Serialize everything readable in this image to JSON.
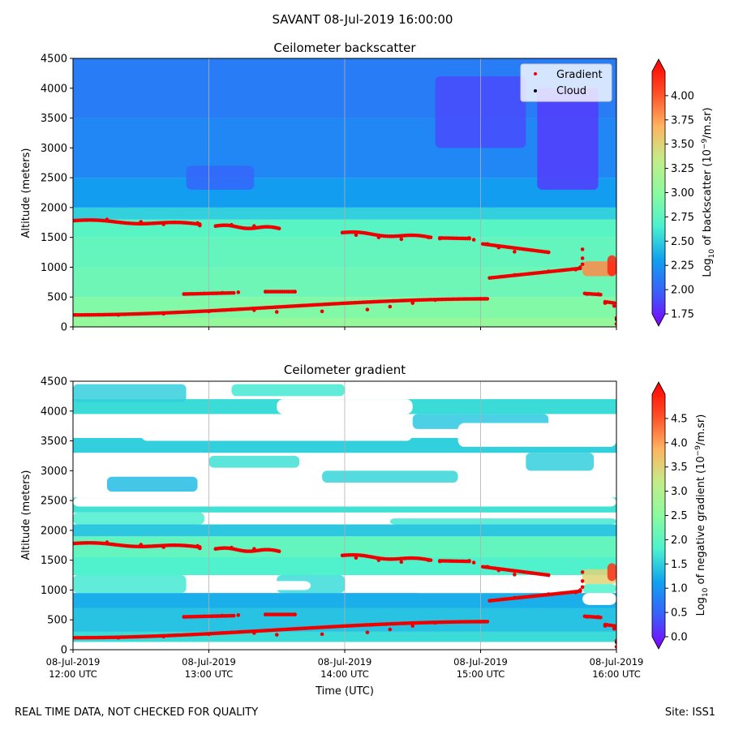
{
  "figure": {
    "title": "SAVANT 08-Jul-2019 16:00:00",
    "footer_left": "REAL TIME DATA, NOT CHECKED FOR QUALITY",
    "footer_right": "Site: ISS1"
  },
  "colors": {
    "scale_stops": [
      "#8000ff",
      "#3a5efa",
      "#10a2f0",
      "#4cf2ce",
      "#8cfa9e",
      "#c4ec8a",
      "#ffb360",
      "#ff4d26",
      "#ff0000"
    ],
    "gradient_marker": "#ee0000",
    "cloud_marker": "#000000",
    "grid": "#b0b0b0"
  },
  "chart_data": [
    {
      "type": "heatmap",
      "title": "Ceilometer backscatter",
      "ylabel": "Altitude (meters)",
      "xlabel": "",
      "ylim": [
        0,
        4500
      ],
      "xlim": [
        0,
        240
      ],
      "x_units": "minutes since 08-Jul-2019 12:00 UTC",
      "yticks": [
        0,
        500,
        1000,
        1500,
        2000,
        2500,
        3000,
        3500,
        4000,
        4500
      ],
      "xtick_values": [
        0,
        60,
        120,
        180,
        240
      ],
      "grid": "vertical",
      "legend": {
        "placement": "top-right",
        "entries": [
          "Gradient",
          "Cloud"
        ]
      },
      "colorbar": {
        "label": "Log$_{10}$ of backscatter (10$^{-9}$/m.sr)",
        "label_parts": {
          "pre": "Log",
          "sub": "10",
          "mid": " of backscatter (10",
          "sup": "−9",
          "post": "/m.sr)"
        },
        "range": [
          1.75,
          4.25
        ],
        "ticks": [
          "1.75",
          "2.00",
          "2.25",
          "2.50",
          "2.75",
          "3.00",
          "3.25",
          "3.50",
          "3.75",
          "4.00"
        ],
        "tick_values": [
          1.75,
          2.0,
          2.25,
          2.5,
          2.75,
          3.0,
          3.25,
          3.5,
          3.75,
          4.0
        ],
        "extend": "both"
      },
      "layers": [
        {
          "from": 0,
          "to": 150,
          "value": 3.05
        },
        {
          "from": 150,
          "to": 500,
          "value": 2.95
        },
        {
          "from": 500,
          "to": 1000,
          "value": 2.85
        },
        {
          "from": 1000,
          "to": 1500,
          "value": 2.8
        },
        {
          "from": 1500,
          "to": 1800,
          "value": 2.75
        },
        {
          "from": 1800,
          "to": 2000,
          "value": 2.55
        },
        {
          "from": 2000,
          "to": 2500,
          "value": 2.35
        },
        {
          "from": 2500,
          "to": 3500,
          "value": 2.25
        },
        {
          "from": 3500,
          "to": 4500,
          "value": 2.2
        }
      ],
      "patches": [
        {
          "t0": 160,
          "t1": 200,
          "y0": 3000,
          "y1": 4200,
          "value": 2.0
        },
        {
          "t0": 205,
          "t1": 232,
          "y0": 2300,
          "y1": 4000,
          "value": 1.95
        },
        {
          "t0": 50,
          "t1": 80,
          "y0": 2300,
          "y1": 2700,
          "value": 2.1
        },
        {
          "t0": 225,
          "t1": 240,
          "y0": 850,
          "y1": 1100,
          "value": 3.75
        },
        {
          "t0": 236,
          "t1": 240,
          "y0": 850,
          "y1": 1200,
          "value": 4.1
        }
      ],
      "gradient_points": [
        [
          0,
          200
        ],
        [
          20,
          200
        ],
        [
          40,
          220
        ],
        [
          60,
          260
        ],
        [
          70,
          290
        ],
        [
          80,
          280
        ],
        [
          90,
          250
        ],
        [
          110,
          260
        ],
        [
          130,
          290
        ],
        [
          140,
          340
        ],
        [
          150,
          400
        ],
        [
          160,
          450
        ],
        [
          180,
          470
        ],
        [
          182,
          470
        ],
        [
          184,
          820
        ],
        [
          195,
          870
        ],
        [
          210,
          930
        ],
        [
          222,
          960
        ],
        [
          224,
          1000
        ],
        [
          225,
          1050
        ],
        [
          225,
          1150
        ],
        [
          225,
          1300
        ],
        [
          227,
          550
        ],
        [
          232,
          550
        ],
        [
          235,
          400
        ],
        [
          239,
          350
        ],
        [
          240,
          150
        ],
        [
          240,
          50
        ],
        [
          0,
          1780
        ],
        [
          15,
          1800
        ],
        [
          30,
          1760
        ],
        [
          40,
          1720
        ],
        [
          55,
          1740
        ],
        [
          56,
          1700
        ],
        [
          63,
          1690
        ],
        [
          70,
          1710
        ],
        [
          80,
          1690
        ],
        [
          91,
          1650
        ],
        [
          119,
          1580
        ],
        [
          125,
          1540
        ],
        [
          135,
          1500
        ],
        [
          145,
          1470
        ],
        [
          157,
          1500
        ],
        [
          162,
          1480
        ],
        [
          175,
          1490
        ],
        [
          177,
          1460
        ],
        [
          183,
          1390
        ],
        [
          188,
          1330
        ],
        [
          195,
          1260
        ],
        [
          210,
          1250
        ],
        [
          49,
          550
        ],
        [
          58,
          560
        ],
        [
          66,
          570
        ],
        [
          73,
          580
        ],
        [
          85,
          590
        ],
        [
          98,
          590
        ]
      ],
      "gradient_segments": [
        {
          "t0": 0,
          "t1": 183,
          "y0": 200,
          "y1": 470,
          "shape": "s"
        },
        {
          "t0": 184,
          "t1": 224,
          "y0": 820,
          "y1": 980,
          "shape": "lin"
        },
        {
          "t0": 0,
          "t1": 56,
          "y0": 1780,
          "y1": 1720,
          "shape": "wave"
        },
        {
          "t0": 63,
          "t1": 91,
          "y0": 1690,
          "y1": 1650,
          "shape": "wave"
        },
        {
          "t0": 119,
          "t1": 158,
          "y0": 1580,
          "y1": 1500,
          "shape": "wave"
        },
        {
          "t0": 162,
          "t1": 175,
          "y0": 1490,
          "y1": 1480,
          "shape": "lin"
        },
        {
          "t0": 181,
          "t1": 210,
          "y0": 1390,
          "y1": 1250,
          "shape": "lin"
        },
        {
          "t0": 49,
          "t1": 71,
          "y0": 550,
          "y1": 570,
          "shape": "lin"
        },
        {
          "t0": 85,
          "t1": 98,
          "y0": 590,
          "y1": 590,
          "shape": "lin"
        },
        {
          "t0": 226,
          "t1": 233,
          "y0": 560,
          "y1": 540,
          "shape": "lin"
        },
        {
          "t0": 235,
          "t1": 239,
          "y0": 420,
          "y1": 400,
          "shape": "lin"
        }
      ],
      "cloud_points": [
        [
          240,
          120
        ]
      ]
    },
    {
      "type": "heatmap",
      "title": "Ceilometer gradient",
      "ylabel": "Altitude (meters)",
      "xlabel": "Time (UTC)",
      "ylim": [
        0,
        4500
      ],
      "xlim": [
        0,
        240
      ],
      "x_units": "minutes since 08-Jul-2019 12:00 UTC",
      "yticks": [
        0,
        500,
        1000,
        1500,
        2000,
        2500,
        3000,
        3500,
        4000,
        4500
      ],
      "xtick_values": [
        0,
        60,
        120,
        180,
        240
      ],
      "xticks": [
        [
          "08-Jul-2019",
          "12:00 UTC"
        ],
        [
          "08-Jul-2019",
          "13:00 UTC"
        ],
        [
          "08-Jul-2019",
          "14:00 UTC"
        ],
        [
          "08-Jul-2019",
          "15:00 UTC"
        ],
        [
          "08-Jul-2019",
          "16:00 UTC"
        ]
      ],
      "grid": "vertical",
      "colorbar": {
        "label": "Log$_{10}$ of negative gradient (10$^{-9}$/m.sr)",
        "label_parts": {
          "pre": "Log",
          "sub": "10",
          "mid": " of negative gradient (10",
          "sup": "−9",
          "post": "/m.sr)"
        },
        "range": [
          0.0,
          5.0
        ],
        "ticks": [
          "0.0",
          "0.5",
          "1.0",
          "1.5",
          "2.0",
          "2.5",
          "3.0",
          "3.5",
          "4.0",
          "4.5"
        ],
        "tick_values": [
          0.0,
          0.5,
          1.0,
          1.5,
          2.0,
          2.5,
          3.0,
          3.5,
          4.0,
          4.5
        ],
        "extend": "both"
      },
      "layers": [
        {
          "from": 130,
          "to": 300,
          "value": 1.7
        },
        {
          "from": 300,
          "to": 700,
          "value": 1.5
        },
        {
          "from": 700,
          "to": 950,
          "value": 1.35
        },
        {
          "from": 1250,
          "to": 1550,
          "value": 1.9
        },
        {
          "from": 1550,
          "to": 1900,
          "value": 2.1
        },
        {
          "from": 1900,
          "to": 2100,
          "value": 1.55
        },
        {
          "from": 2300,
          "to": 2550,
          "value": 1.75
        },
        {
          "from": 3300,
          "to": 3550,
          "value": 1.6
        },
        {
          "from": 3950,
          "to": 4200,
          "value": 1.7
        }
      ],
      "patches": [
        {
          "t0": 0,
          "t1": 58,
          "y0": 2100,
          "y1": 2300,
          "value": 1.85
        },
        {
          "t0": 140,
          "t1": 240,
          "y0": 2100,
          "y1": 2200,
          "value": 1.8
        },
        {
          "t0": 15,
          "t1": 55,
          "y0": 2650,
          "y1": 2900,
          "value": 1.45
        },
        {
          "t0": 110,
          "t1": 170,
          "y0": 2800,
          "y1": 3000,
          "value": 1.65
        },
        {
          "t0": 200,
          "t1": 230,
          "y0": 3000,
          "y1": 3300,
          "value": 1.6
        },
        {
          "t0": 60,
          "t1": 100,
          "y0": 3050,
          "y1": 3250,
          "value": 1.75
        },
        {
          "t0": 0,
          "t1": 50,
          "y0": 4150,
          "y1": 4450,
          "value": 1.6
        },
        {
          "t0": 70,
          "t1": 120,
          "y0": 4250,
          "y1": 4450,
          "value": 1.8
        },
        {
          "t0": 150,
          "t1": 210,
          "y0": 3700,
          "y1": 3950,
          "value": 1.55
        },
        {
          "t0": 0,
          "t1": 50,
          "y0": 950,
          "y1": 1250,
          "value": 1.8
        },
        {
          "t0": 90,
          "t1": 120,
          "y0": 950,
          "y1": 1250,
          "value": 1.7
        },
        {
          "t0": 225,
          "t1": 240,
          "y0": 1100,
          "y1": 1350,
          "value": 3.4
        },
        {
          "t0": 236,
          "t1": 240,
          "y0": 1150,
          "y1": 1450,
          "value": 4.6
        },
        {
          "t0": 225,
          "t1": 240,
          "y0": 950,
          "y1": 1100,
          "value": 1.9
        }
      ],
      "gaps": [
        {
          "t0": 0,
          "t1": 240,
          "y0": 2400,
          "y1": 2550
        },
        {
          "t0": 30,
          "t1": 150,
          "y0": 3500,
          "y1": 3850
        },
        {
          "t0": 170,
          "t1": 240,
          "y0": 3400,
          "y1": 3800
        },
        {
          "t0": 0,
          "t1": 40,
          "y0": 3550,
          "y1": 3950
        },
        {
          "t0": 90,
          "t1": 150,
          "y0": 3950,
          "y1": 4200
        },
        {
          "t0": 0,
          "t1": 60,
          "y0": 3000,
          "y1": 3300
        },
        {
          "t0": 100,
          "t1": 240,
          "y0": 2600,
          "y1": 2780
        },
        {
          "t0": 200,
          "t1": 240,
          "y0": 4250,
          "y1": 4450
        },
        {
          "t0": 80,
          "t1": 105,
          "y0": 1000,
          "y1": 1150
        },
        {
          "t0": 150,
          "t1": 205,
          "y0": 950,
          "y1": 1100
        },
        {
          "t0": 225,
          "t1": 240,
          "y0": 750,
          "y1": 950
        }
      ],
      "gradient_points": [
        [
          0,
          200
        ],
        [
          20,
          200
        ],
        [
          40,
          220
        ],
        [
          60,
          260
        ],
        [
          70,
          290
        ],
        [
          80,
          280
        ],
        [
          90,
          250
        ],
        [
          110,
          260
        ],
        [
          130,
          290
        ],
        [
          140,
          340
        ],
        [
          150,
          400
        ],
        [
          160,
          450
        ],
        [
          180,
          470
        ],
        [
          182,
          470
        ],
        [
          184,
          820
        ],
        [
          195,
          870
        ],
        [
          210,
          930
        ],
        [
          222,
          960
        ],
        [
          224,
          1000
        ],
        [
          225,
          1050
        ],
        [
          225,
          1150
        ],
        [
          225,
          1300
        ],
        [
          227,
          550
        ],
        [
          232,
          550
        ],
        [
          235,
          400
        ],
        [
          239,
          350
        ],
        [
          240,
          150
        ],
        [
          240,
          50
        ],
        [
          0,
          1780
        ],
        [
          15,
          1800
        ],
        [
          30,
          1760
        ],
        [
          40,
          1720
        ],
        [
          55,
          1740
        ],
        [
          56,
          1700
        ],
        [
          63,
          1690
        ],
        [
          70,
          1710
        ],
        [
          80,
          1690
        ],
        [
          91,
          1650
        ],
        [
          119,
          1580
        ],
        [
          125,
          1540
        ],
        [
          135,
          1500
        ],
        [
          145,
          1470
        ],
        [
          157,
          1500
        ],
        [
          162,
          1480
        ],
        [
          175,
          1490
        ],
        [
          177,
          1460
        ],
        [
          183,
          1390
        ],
        [
          188,
          1330
        ],
        [
          195,
          1260
        ],
        [
          210,
          1250
        ],
        [
          49,
          550
        ],
        [
          58,
          560
        ],
        [
          66,
          570
        ],
        [
          73,
          580
        ],
        [
          85,
          590
        ],
        [
          98,
          590
        ]
      ],
      "gradient_segments": [
        {
          "t0": 0,
          "t1": 183,
          "y0": 200,
          "y1": 470,
          "shape": "s"
        },
        {
          "t0": 184,
          "t1": 224,
          "y0": 820,
          "y1": 980,
          "shape": "lin"
        },
        {
          "t0": 0,
          "t1": 56,
          "y0": 1780,
          "y1": 1720,
          "shape": "wave"
        },
        {
          "t0": 63,
          "t1": 91,
          "y0": 1690,
          "y1": 1650,
          "shape": "wave"
        },
        {
          "t0": 119,
          "t1": 158,
          "y0": 1580,
          "y1": 1500,
          "shape": "wave"
        },
        {
          "t0": 162,
          "t1": 175,
          "y0": 1490,
          "y1": 1480,
          "shape": "lin"
        },
        {
          "t0": 181,
          "t1": 210,
          "y0": 1390,
          "y1": 1250,
          "shape": "lin"
        },
        {
          "t0": 49,
          "t1": 71,
          "y0": 550,
          "y1": 570,
          "shape": "lin"
        },
        {
          "t0": 85,
          "t1": 98,
          "y0": 590,
          "y1": 590,
          "shape": "lin"
        },
        {
          "t0": 226,
          "t1": 233,
          "y0": 560,
          "y1": 540,
          "shape": "lin"
        },
        {
          "t0": 235,
          "t1": 239,
          "y0": 420,
          "y1": 400,
          "shape": "lin"
        }
      ],
      "cloud_points": [
        [
          240,
          120
        ]
      ]
    }
  ]
}
